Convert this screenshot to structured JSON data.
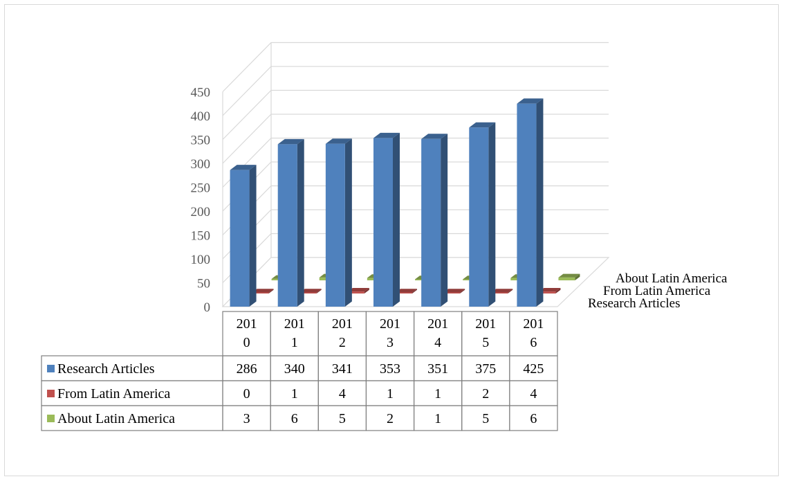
{
  "chart_data": {
    "type": "bar",
    "variant": "3d-column-with-data-table",
    "categories": [
      "2010",
      "2011",
      "2012",
      "2013",
      "2014",
      "2015",
      "2016"
    ],
    "category_labels": [
      [
        "201",
        "0"
      ],
      [
        "201",
        "1"
      ],
      [
        "201",
        "2"
      ],
      [
        "201",
        "3"
      ],
      [
        "201",
        "4"
      ],
      [
        "201",
        "5"
      ],
      [
        "201",
        "6"
      ]
    ],
    "series": [
      {
        "name": "Research Articles",
        "values": [
          286,
          340,
          341,
          353,
          351,
          375,
          425
        ],
        "color": "#4f81bd"
      },
      {
        "name": "From Latin America",
        "values": [
          0,
          1,
          4,
          1,
          1,
          2,
          4
        ],
        "color": "#c0504d"
      },
      {
        "name": "About Latin America",
        "values": [
          3,
          6,
          5,
          2,
          1,
          5,
          6
        ],
        "color": "#9bbb59"
      }
    ],
    "depth_labels": [
      "About Latin America",
      "From Latin America",
      "Research Articles"
    ],
    "y_ticks": [
      "0",
      "50",
      "100",
      "150",
      "200",
      "250",
      "300",
      "350",
      "400",
      "450"
    ],
    "ylim": [
      0,
      450
    ],
    "grid": true,
    "legend": "data-table"
  }
}
